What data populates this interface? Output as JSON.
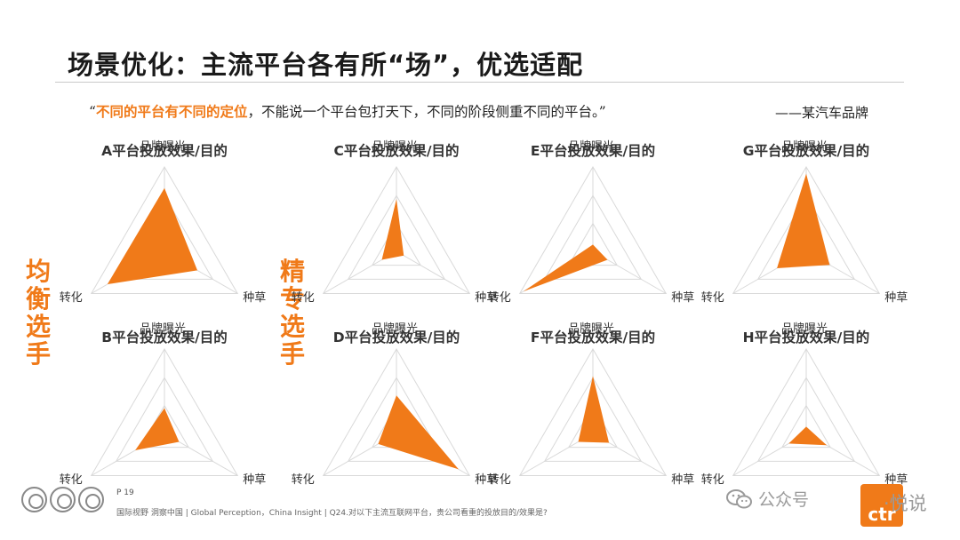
{
  "title": "场景优化：主流平台各有所“场”，优选适配",
  "quote": {
    "open": "“",
    "highlight": "不同的平台有不同的定位",
    "rest": "，不能说一个平台包打天下，不同的阶段侧重不同的平台。”",
    "source": "——某汽车品牌"
  },
  "side_labels": {
    "left": "均衡选手",
    "right": "精专选手"
  },
  "colors": {
    "accent": "#f07a19",
    "grid": "#d9d9d9"
  },
  "chart_data": [
    {
      "type": "radar",
      "title": "A平台投放效果/目的",
      "axes": [
        "品牌曝光",
        "种草",
        "转化"
      ],
      "values": [
        0.75,
        0.45,
        0.78
      ]
    },
    {
      "type": "radar",
      "title": "C平台投放效果/目的",
      "axes": [
        "品牌曝光",
        "种草",
        "转化"
      ],
      "values": [
        0.62,
        0.1,
        0.2
      ]
    },
    {
      "type": "radar",
      "title": "E平台投放效果/目的",
      "axes": [
        "品牌曝光",
        "种草",
        "转化"
      ],
      "values": [
        0.08,
        0.2,
        0.95
      ]
    },
    {
      "type": "radar",
      "title": "G平台投放效果/目的",
      "axes": [
        "品牌曝光",
        "种草",
        "转化"
      ],
      "values": [
        0.92,
        0.32,
        0.4
      ]
    },
    {
      "type": "radar",
      "title": "B平台投放效果/目的",
      "axes": [
        "品牌曝光",
        "种草",
        "转化"
      ],
      "values": [
        0.3,
        0.2,
        0.4
      ]
    },
    {
      "type": "radar",
      "title": "D平台投放效果/目的",
      "axes": [
        "品牌曝光",
        "种草",
        "转化"
      ],
      "values": [
        0.45,
        0.85,
        0.25
      ]
    },
    {
      "type": "radar",
      "title": "F平台投放效果/目的",
      "axes": [
        "品牌曝光",
        "种草",
        "转化"
      ],
      "values": [
        0.68,
        0.22,
        0.2
      ]
    },
    {
      "type": "radar",
      "title": "H平台投放效果/目的",
      "axes": [
        "品牌曝光",
        "种草",
        "转化"
      ],
      "values": [
        0.08,
        0.28,
        0.24
      ]
    }
  ],
  "footer": {
    "page": "P 19",
    "text": "国际视野 洞察中国 | Global Perception，China Insight | Q24.对以下主流互联网平台，贵公司看重的投放目的/效果是?",
    "wechat": "公众号",
    "brand_logo": "ctr",
    "brand_tail": "·悦说"
  }
}
